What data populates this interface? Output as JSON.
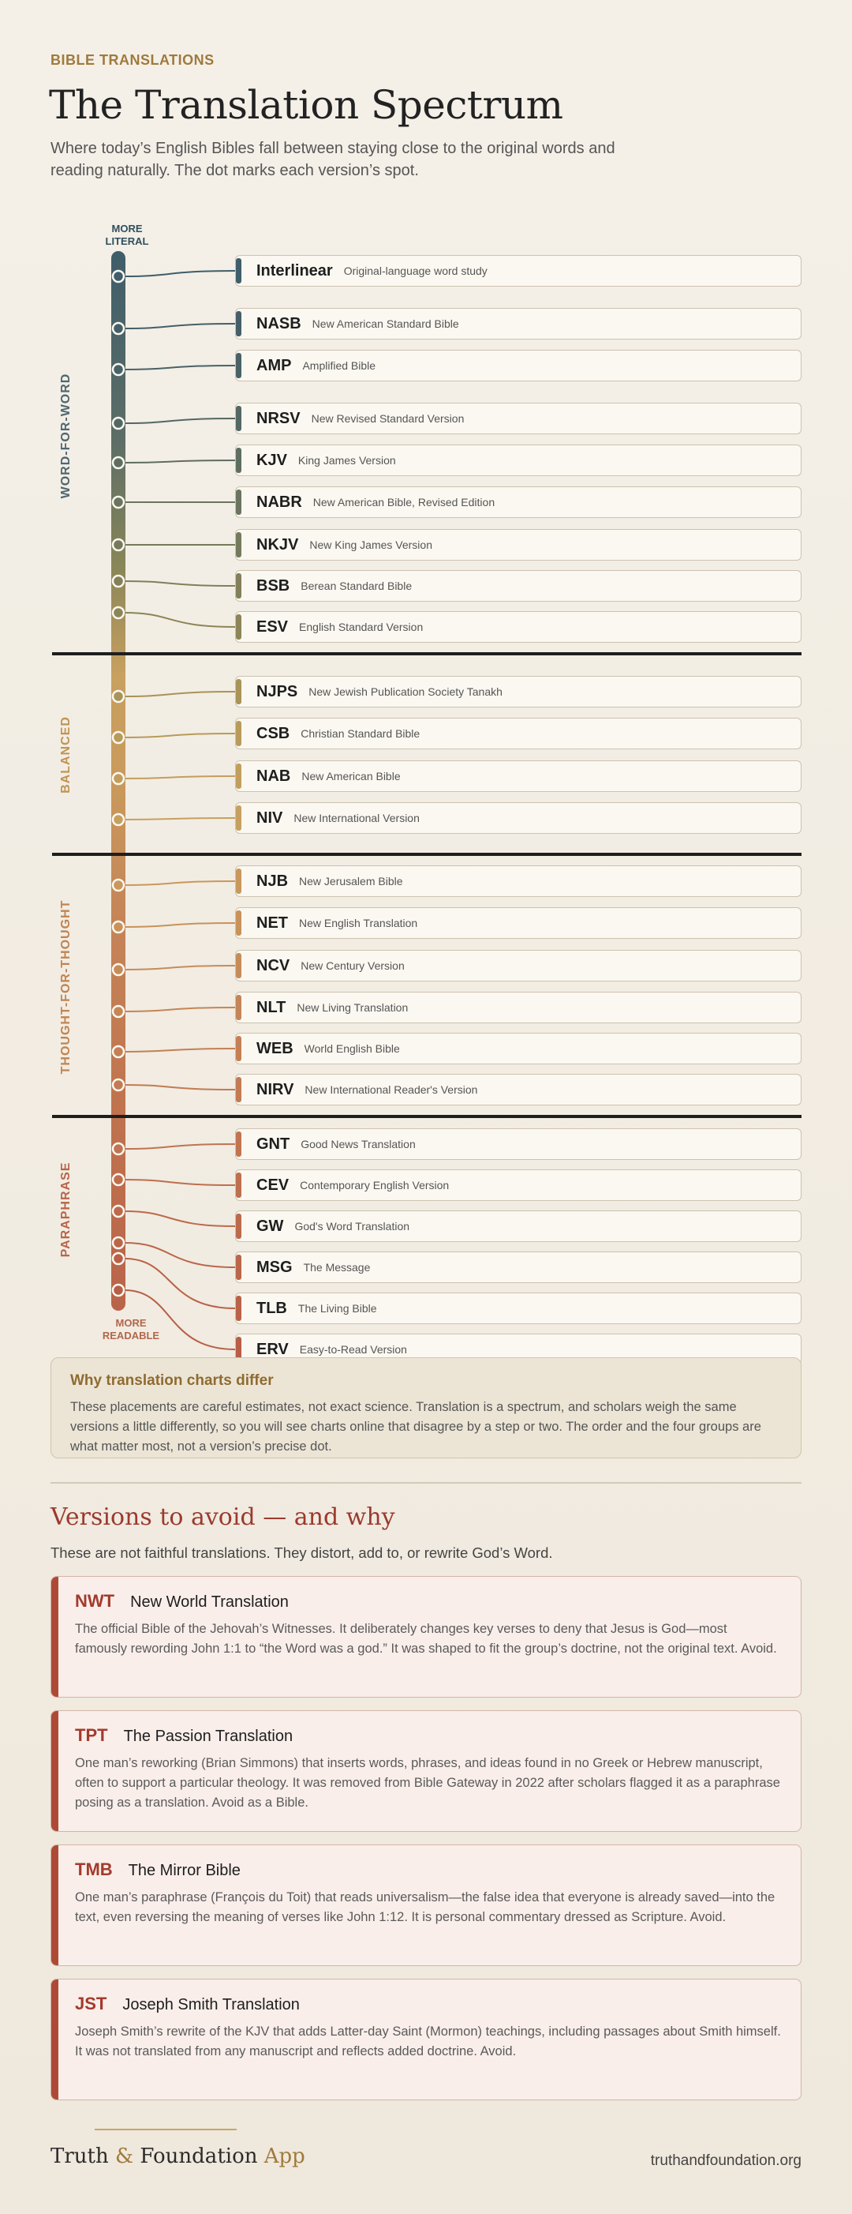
{
  "header": {
    "eyebrow": "BIBLE TRANSLATIONS",
    "title": "The Translation Spectrum",
    "subtitle": "Where today’s English Bibles fall between staying close to the original words and reading naturally. The dot marks each version’s spot."
  },
  "axis": {
    "top_label": "MORE\nLITERAL",
    "bottom_label": "MORE\nREADABLE"
  },
  "groups": [
    {
      "label": "WORD-FOR-WORD",
      "color": "#4f6770"
    },
    {
      "label": "BALANCED",
      "color": "#c09453"
    },
    {
      "label": "THOUGHT-FOR-THOUGHT",
      "color": "#c08452"
    },
    {
      "label": "PARAPHRASE",
      "color": "#b9644a"
    }
  ],
  "translations": [
    {
      "abbr": "Interlinear",
      "name": "Original-language word study",
      "group": 0,
      "color": "#3f5d6a"
    },
    {
      "abbr": "NASB",
      "name": "New American Standard Bible",
      "group": 0,
      "color": "#455f68"
    },
    {
      "abbr": "AMP",
      "name": "Amplified Bible",
      "group": 0,
      "color": "#4a6266"
    },
    {
      "abbr": "NRSV",
      "name": "New Revised Standard Version",
      "group": 0,
      "color": "#546763"
    },
    {
      "abbr": "KJV",
      "name": "King James Version",
      "group": 0,
      "color": "#5e6d60"
    },
    {
      "abbr": "NABR",
      "name": "New American Bible, Revised Edition",
      "group": 0,
      "color": "#6a745e"
    },
    {
      "abbr": "NKJV",
      "name": "New King James Version",
      "group": 0,
      "color": "#767a5c"
    },
    {
      "abbr": "BSB",
      "name": "Berean Standard Bible",
      "group": 0,
      "color": "#827f5a"
    },
    {
      "abbr": "ESV",
      "name": "English Standard Version",
      "group": 0,
      "color": "#8c8558"
    },
    {
      "abbr": "NJPS",
      "name": "New Jewish Publication Society Tanakh",
      "group": 1,
      "color": "#a89358"
    },
    {
      "abbr": "CSB",
      "name": "Christian Standard Bible",
      "group": 1,
      "color": "#b89a5a"
    },
    {
      "abbr": "NAB",
      "name": "New American Bible",
      "group": 1,
      "color": "#c29e5e"
    },
    {
      "abbr": "NIV",
      "name": "New International Version",
      "group": 1,
      "color": "#c6a060"
    },
    {
      "abbr": "NJB",
      "name": "New Jerusalem Bible",
      "group": 2,
      "color": "#c9985c"
    },
    {
      "abbr": "NET",
      "name": "New English Translation",
      "group": 2,
      "color": "#c8925a"
    },
    {
      "abbr": "NCV",
      "name": "New Century Version",
      "group": 2,
      "color": "#c68c58"
    },
    {
      "abbr": "NLT",
      "name": "New Living Translation",
      "group": 2,
      "color": "#c48656"
    },
    {
      "abbr": "WEB",
      "name": "World English Bible",
      "group": 2,
      "color": "#c38054"
    },
    {
      "abbr": "NIRV",
      "name": "New International Reader's Version",
      "group": 2,
      "color": "#c27b52"
    },
    {
      "abbr": "GNT",
      "name": "Good News Translation",
      "group": 3,
      "color": "#c07450"
    },
    {
      "abbr": "CEV",
      "name": "Contemporary English Version",
      "group": 3,
      "color": "#be6f4e"
    },
    {
      "abbr": "GW",
      "name": "God's Word Translation",
      "group": 3,
      "color": "#bc6a4c"
    },
    {
      "abbr": "MSG",
      "name": "The Message",
      "group": 3,
      "color": "#ba664a"
    },
    {
      "abbr": "TLB",
      "name": "The Living Bible",
      "group": 3,
      "color": "#b86248"
    },
    {
      "abbr": "ERV",
      "name": "Easy-to-Read Version",
      "group": 3,
      "color": "#b65e46"
    }
  ],
  "note": {
    "title": "Why translation charts differ",
    "text": "These placements are careful estimates, not exact science. Translation is a spectrum, and scholars weigh the same versions a little differently, so you will see charts online that disagree by a step or two. The order and the four groups are what matter most, not a version’s precise dot."
  },
  "avoid": {
    "title": "Versions to avoid — and why",
    "subtitle": "These are not faithful translations. They distort, add to, or rewrite God’s Word.",
    "items": [
      {
        "abbr": "NWT",
        "name": "New World Translation",
        "desc": "The official Bible of the Jehovah’s Witnesses. It deliberately changes key verses to deny that Jesus is God—most famously rewording John 1:1 to “the Word was a god.” It was shaped to fit the group’s doctrine, not the original text. Avoid."
      },
      {
        "abbr": "TPT",
        "name": "The Passion Translation",
        "desc": "One man’s reworking (Brian Simmons) that inserts words, phrases, and ideas found in no Greek or Hebrew manuscript, often to support a particular theology. It was removed from Bible Gateway in 2022 after scholars flagged it as a paraphrase posing as a translation. Avoid as a Bible."
      },
      {
        "abbr": "TMB",
        "name": "The Mirror Bible",
        "desc": "One man’s paraphrase (François du Toit) that reads universalism—the false idea that everyone is already saved—into the text, even reversing the meaning of verses like John 1:12. It is personal commentary dressed as Scripture. Avoid."
      },
      {
        "abbr": "JST",
        "name": "Joseph Smith Translation",
        "desc": "Joseph Smith’s rewrite of the KJV that adds Latter-day Saint (Mormon) teachings, including passages about Smith himself. It was not translated from any manuscript and reflects added doctrine. Avoid."
      }
    ]
  },
  "footer": {
    "brand_part1": "Truth",
    "brand_amp": "&",
    "brand_part2": "Foundation",
    "brand_part3": "App",
    "site": "truthandfoundation.org"
  }
}
